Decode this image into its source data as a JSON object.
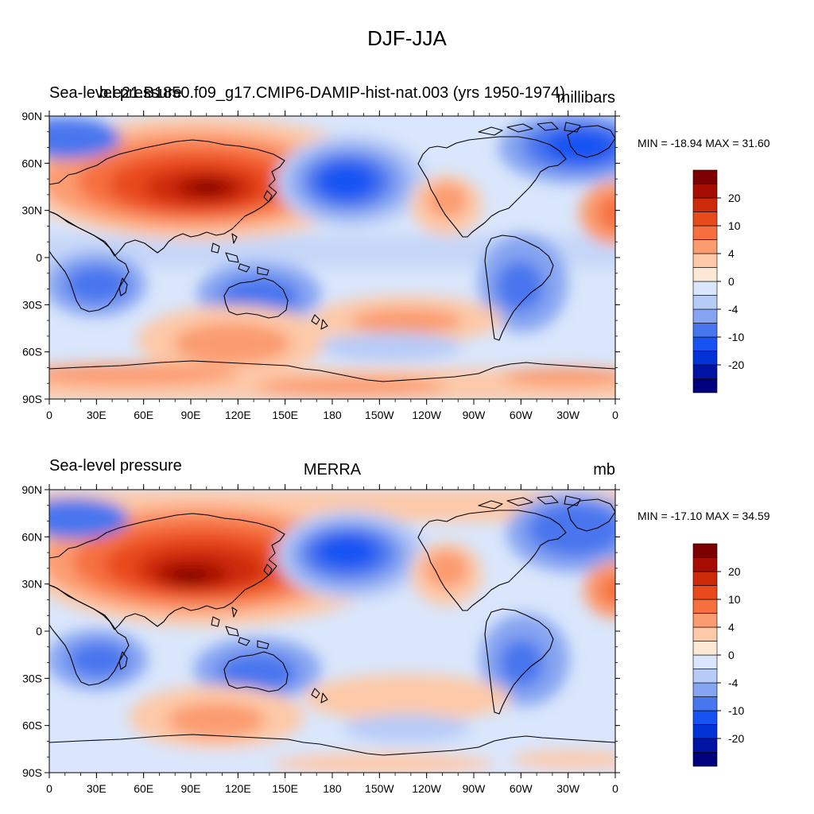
{
  "page_title": "DJF-JJA",
  "colors": {
    "palette": [
      "#00007f",
      "#0013a3",
      "#0032d6",
      "#1753f3",
      "#4876ee",
      "#86a4f1",
      "#b7cbf7",
      "#d9e6fb",
      "#fde8d6",
      "#fdc9a8",
      "#fb9b70",
      "#f6703f",
      "#e84a1c",
      "#cd2a0a",
      "#a70d02",
      "#7d0000"
    ],
    "land_outline": "#000000"
  },
  "panels": [
    {
      "id": "top",
      "left_title": "Sea-level pressure",
      "center_title": "b.e21.B1850.f09_g17.CMIP6-DAMIP-hist-nat.003 (yrs 1950-1974)",
      "units": "millibars",
      "min_max": "MIN = -18.94 MAX =  31.60",
      "colorbar_labels": [
        "20",
        "10",
        "4",
        "0",
        "-4",
        "-10",
        "-20"
      ],
      "lat_labels": [
        "90N",
        "60N",
        "30N",
        "0",
        "30S",
        "60S",
        "90S"
      ],
      "lon_labels": [
        "0",
        "30E",
        "60E",
        "90E",
        "120E",
        "150E",
        "180",
        "150W",
        "120W",
        "90W",
        "60W",
        "30W",
        "0"
      ]
    },
    {
      "id": "bottom",
      "left_title": "Sea-level pressure",
      "center_title": "MERRA",
      "units": "mb",
      "min_max": "MIN = -17.10 MAX =  34.59",
      "colorbar_labels": [
        "20",
        "10",
        "4",
        "0",
        "-4",
        "-10",
        "-20"
      ],
      "lat_labels": [
        "90N",
        "60N",
        "30N",
        "0",
        "30S",
        "60S",
        "90S"
      ],
      "lon_labels": [
        "0",
        "30E",
        "60E",
        "90E",
        "120E",
        "150E",
        "180",
        "150W",
        "120W",
        "90W",
        "60W",
        "30W",
        "0"
      ]
    }
  ]
}
